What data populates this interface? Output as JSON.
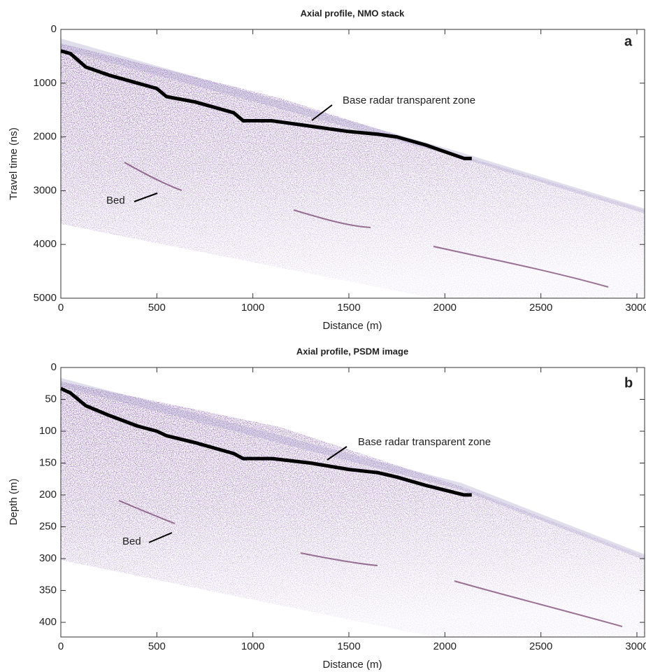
{
  "chart_data": [
    {
      "type": "line",
      "title": "Axial profile, NMO stack",
      "xlabel": "Distance (m)",
      "ylabel": "Travel time (ns)",
      "panel_label": "a",
      "annotations": [
        "Base radar transparent zone",
        "Bed"
      ],
      "xlim": [
        0,
        3040
      ],
      "ylim": [
        0,
        5000
      ],
      "y_inverted": true,
      "xticks": [
        0,
        500,
        1000,
        1500,
        2000,
        2500,
        3000
      ],
      "yticks": [
        0,
        1000,
        2000,
        3000,
        4000,
        5000
      ],
      "series": [
        {
          "color": "#000000",
          "x": [
            0,
            50,
            130,
            250,
            400,
            500,
            550,
            700,
            900,
            950,
            1100,
            1300,
            1500,
            1650,
            1750,
            1900,
            2100,
            2140
          ],
          "values": [
            400,
            450,
            700,
            850,
            1000,
            1100,
            1250,
            1350,
            1550,
            1700,
            1700,
            1800,
            1900,
            1950,
            2000,
            2150,
            2400,
            2400
          ]
        }
      ]
    },
    {
      "type": "line",
      "title": "Axial profile, PSDM image",
      "xlabel": "Distance (m)",
      "ylabel": "Depth (m)",
      "panel_label": "b",
      "annotations": [
        "Base radar transparent zone",
        "Bed"
      ],
      "xlim": [
        0,
        3040
      ],
      "ylim": [
        0,
        423
      ],
      "y_inverted": true,
      "xticks": [
        0,
        500,
        1000,
        1500,
        2000,
        2500,
        3000
      ],
      "yticks": [
        0,
        50,
        100,
        150,
        200,
        250,
        300,
        350,
        400
      ],
      "series": [
        {
          "color": "#000000",
          "x": [
            0,
            50,
            130,
            250,
            400,
            500,
            550,
            700,
            900,
            950,
            1100,
            1300,
            1500,
            1650,
            1750,
            1900,
            2100,
            2140
          ],
          "values": [
            33,
            40,
            60,
            75,
            92,
            100,
            107,
            118,
            135,
            143,
            143,
            150,
            160,
            165,
            172,
            185,
            200,
            200
          ]
        }
      ]
    }
  ]
}
